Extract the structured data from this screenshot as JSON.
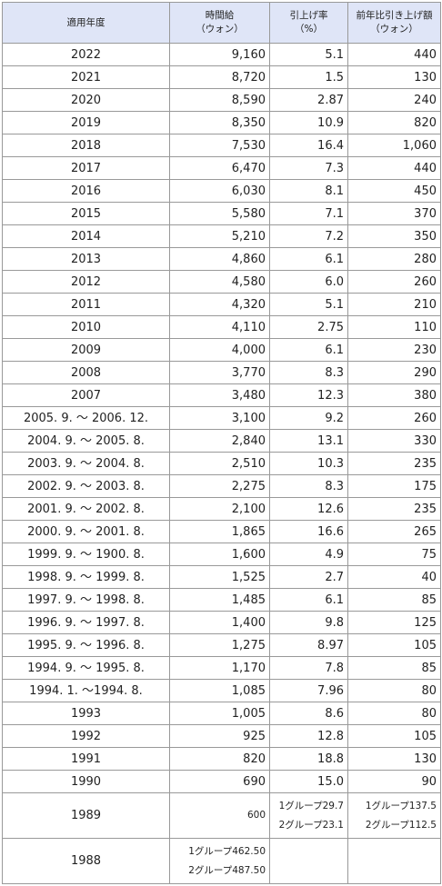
{
  "header": {
    "year": "適用年度",
    "wage": "時間給\n（ウォン）",
    "rate": "引上げ率\n（%）",
    "increase": "前年比引き上げ額\n（ウォン）"
  },
  "rows": [
    {
      "year": "2022",
      "wage": "9,160",
      "rate": "5.1",
      "increase": "440"
    },
    {
      "year": "2021",
      "wage": "8,720",
      "rate": "1.5",
      "increase": "130"
    },
    {
      "year": "2020",
      "wage": "8,590",
      "rate": "2.87",
      "increase": "240"
    },
    {
      "year": "2019",
      "wage": "8,350",
      "rate": "10.9",
      "increase": "820"
    },
    {
      "year": "2018",
      "wage": "7,530",
      "rate": "16.4",
      "increase": "1,060"
    },
    {
      "year": "2017",
      "wage": "6,470",
      "rate": "7.3",
      "increase": "440"
    },
    {
      "year": "2016",
      "wage": "6,030",
      "rate": "8.1",
      "increase": "450"
    },
    {
      "year": "2015",
      "wage": "5,580",
      "rate": "7.1",
      "increase": "370"
    },
    {
      "year": "2014",
      "wage": "5,210",
      "rate": "7.2",
      "increase": "350"
    },
    {
      "year": "2013",
      "wage": "4,860",
      "rate": "6.1",
      "increase": "280"
    },
    {
      "year": "2012",
      "wage": "4,580",
      "rate": "6.0",
      "increase": "260"
    },
    {
      "year": "2011",
      "wage": "4,320",
      "rate": "5.1",
      "increase": "210"
    },
    {
      "year": "2010",
      "wage": "4,110",
      "rate": "2.75",
      "increase": "110"
    },
    {
      "year": "2009",
      "wage": "4,000",
      "rate": "6.1",
      "increase": "230"
    },
    {
      "year": "2008",
      "wage": "3,770",
      "rate": "8.3",
      "increase": "290"
    },
    {
      "year": "2007",
      "wage": "3,480",
      "rate": "12.3",
      "increase": "380"
    },
    {
      "year": "2005. 9. ～ 2006. 12.",
      "wage": "3,100",
      "rate": "9.2",
      "increase": "260"
    },
    {
      "year": "2004. 9. ～ 2005. 8.",
      "wage": "2,840",
      "rate": "13.1",
      "increase": "330"
    },
    {
      "year": "2003. 9. ～ 2004. 8.",
      "wage": "2,510",
      "rate": "10.3",
      "increase": "235"
    },
    {
      "year": "2002. 9. ～ 2003. 8.",
      "wage": "2,275",
      "rate": "8.3",
      "increase": "175"
    },
    {
      "year": "2001. 9. ～ 2002. 8.",
      "wage": "2,100",
      "rate": "12.6",
      "increase": "235"
    },
    {
      "year": "2000. 9. ～ 2001. 8.",
      "wage": "1,865",
      "rate": "16.6",
      "increase": "265"
    },
    {
      "year": "1999. 9. ～ 1900. 8.",
      "wage": "1,600",
      "rate": "4.9",
      "increase": "75"
    },
    {
      "year": "1998. 9. ～ 1999. 8.",
      "wage": "1,525",
      "rate": "2.7",
      "increase": "40"
    },
    {
      "year": "1997. 9. ～ 1998. 8.",
      "wage": "1,485",
      "rate": "6.1",
      "increase": "85"
    },
    {
      "year": "1996. 9. ～ 1997. 8.",
      "wage": "1,400",
      "rate": "9.8",
      "increase": "125"
    },
    {
      "year": "1995. 9. ～ 1996. 8.",
      "wage": "1,275",
      "rate": "8.97",
      "increase": "105"
    },
    {
      "year": "1994. 9. ～ 1995. 8.",
      "wage": "1,170",
      "rate": "7.8",
      "increase": "85"
    },
    {
      "year": "1994. 1. ～1994. 8.",
      "wage": "1,085",
      "rate": "7.96",
      "increase": "80"
    },
    {
      "year": "1993",
      "wage": "1,005",
      "rate": "8.6",
      "increase": "80"
    },
    {
      "year": "1992",
      "wage": "925",
      "rate": "12.8",
      "increase": "105"
    },
    {
      "year": "1991",
      "wage": "820",
      "rate": "18.8",
      "increase": "130"
    },
    {
      "year": "1990",
      "wage": "690",
      "rate": "15.0",
      "increase": "90"
    }
  ],
  "row_1989": {
    "year": "1989",
    "wage": "600",
    "rate": "1グループ29.7\n2グループ23.1",
    "increase": "1グループ137.5\n2グループ112.5"
  },
  "row_1988": {
    "year": "1988",
    "wage": "1グループ462.50\n2グループ487.50",
    "rate": "",
    "increase": ""
  }
}
